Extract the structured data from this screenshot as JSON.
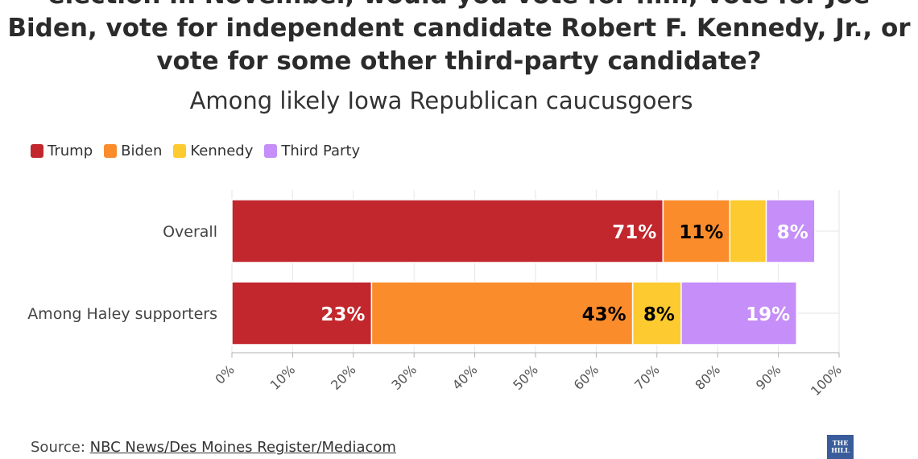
{
  "chart_data": {
    "type": "bar",
    "orientation": "horizontal",
    "stacked": true,
    "title_lines": [
      "election in November, would you vote for him, vote for Joe",
      "Biden, vote for independent candidate Robert F. Kennedy, Jr., or",
      "vote for some other third-party candidate?"
    ],
    "subtitle": "Among likely Iowa Republican caucusgoers",
    "categories": [
      "Overall",
      "Among Haley supporters"
    ],
    "series": [
      {
        "name": "Trump",
        "color": "#c1272d",
        "values": [
          71,
          23
        ],
        "labels": [
          "71%",
          "23%"
        ],
        "label_color": "#ffffff"
      },
      {
        "name": "Biden",
        "color": "#fb8c2c",
        "values": [
          11,
          43
        ],
        "labels": [
          "11%",
          "43%"
        ],
        "label_color": "#000000"
      },
      {
        "name": "Kennedy",
        "color": "#fdca2f",
        "values": [
          6,
          8
        ],
        "labels": [
          "",
          "8%"
        ],
        "label_color": "#000000"
      },
      {
        "name": "Third Party",
        "color": "#c58ef8",
        "values": [
          8,
          19
        ],
        "labels": [
          "8%",
          "19%"
        ],
        "label_color": "#ffffff"
      }
    ],
    "xlim": [
      0,
      100
    ],
    "xticks": [
      "0%",
      "10%",
      "20%",
      "30%",
      "40%",
      "50%",
      "60%",
      "70%",
      "80%",
      "90%",
      "100%"
    ],
    "grid": true,
    "legend": "top-left",
    "source_prefix": "Source:",
    "source": "NBC News/Des Moines Register/Mediacom"
  },
  "logo_text": "THE HILL"
}
